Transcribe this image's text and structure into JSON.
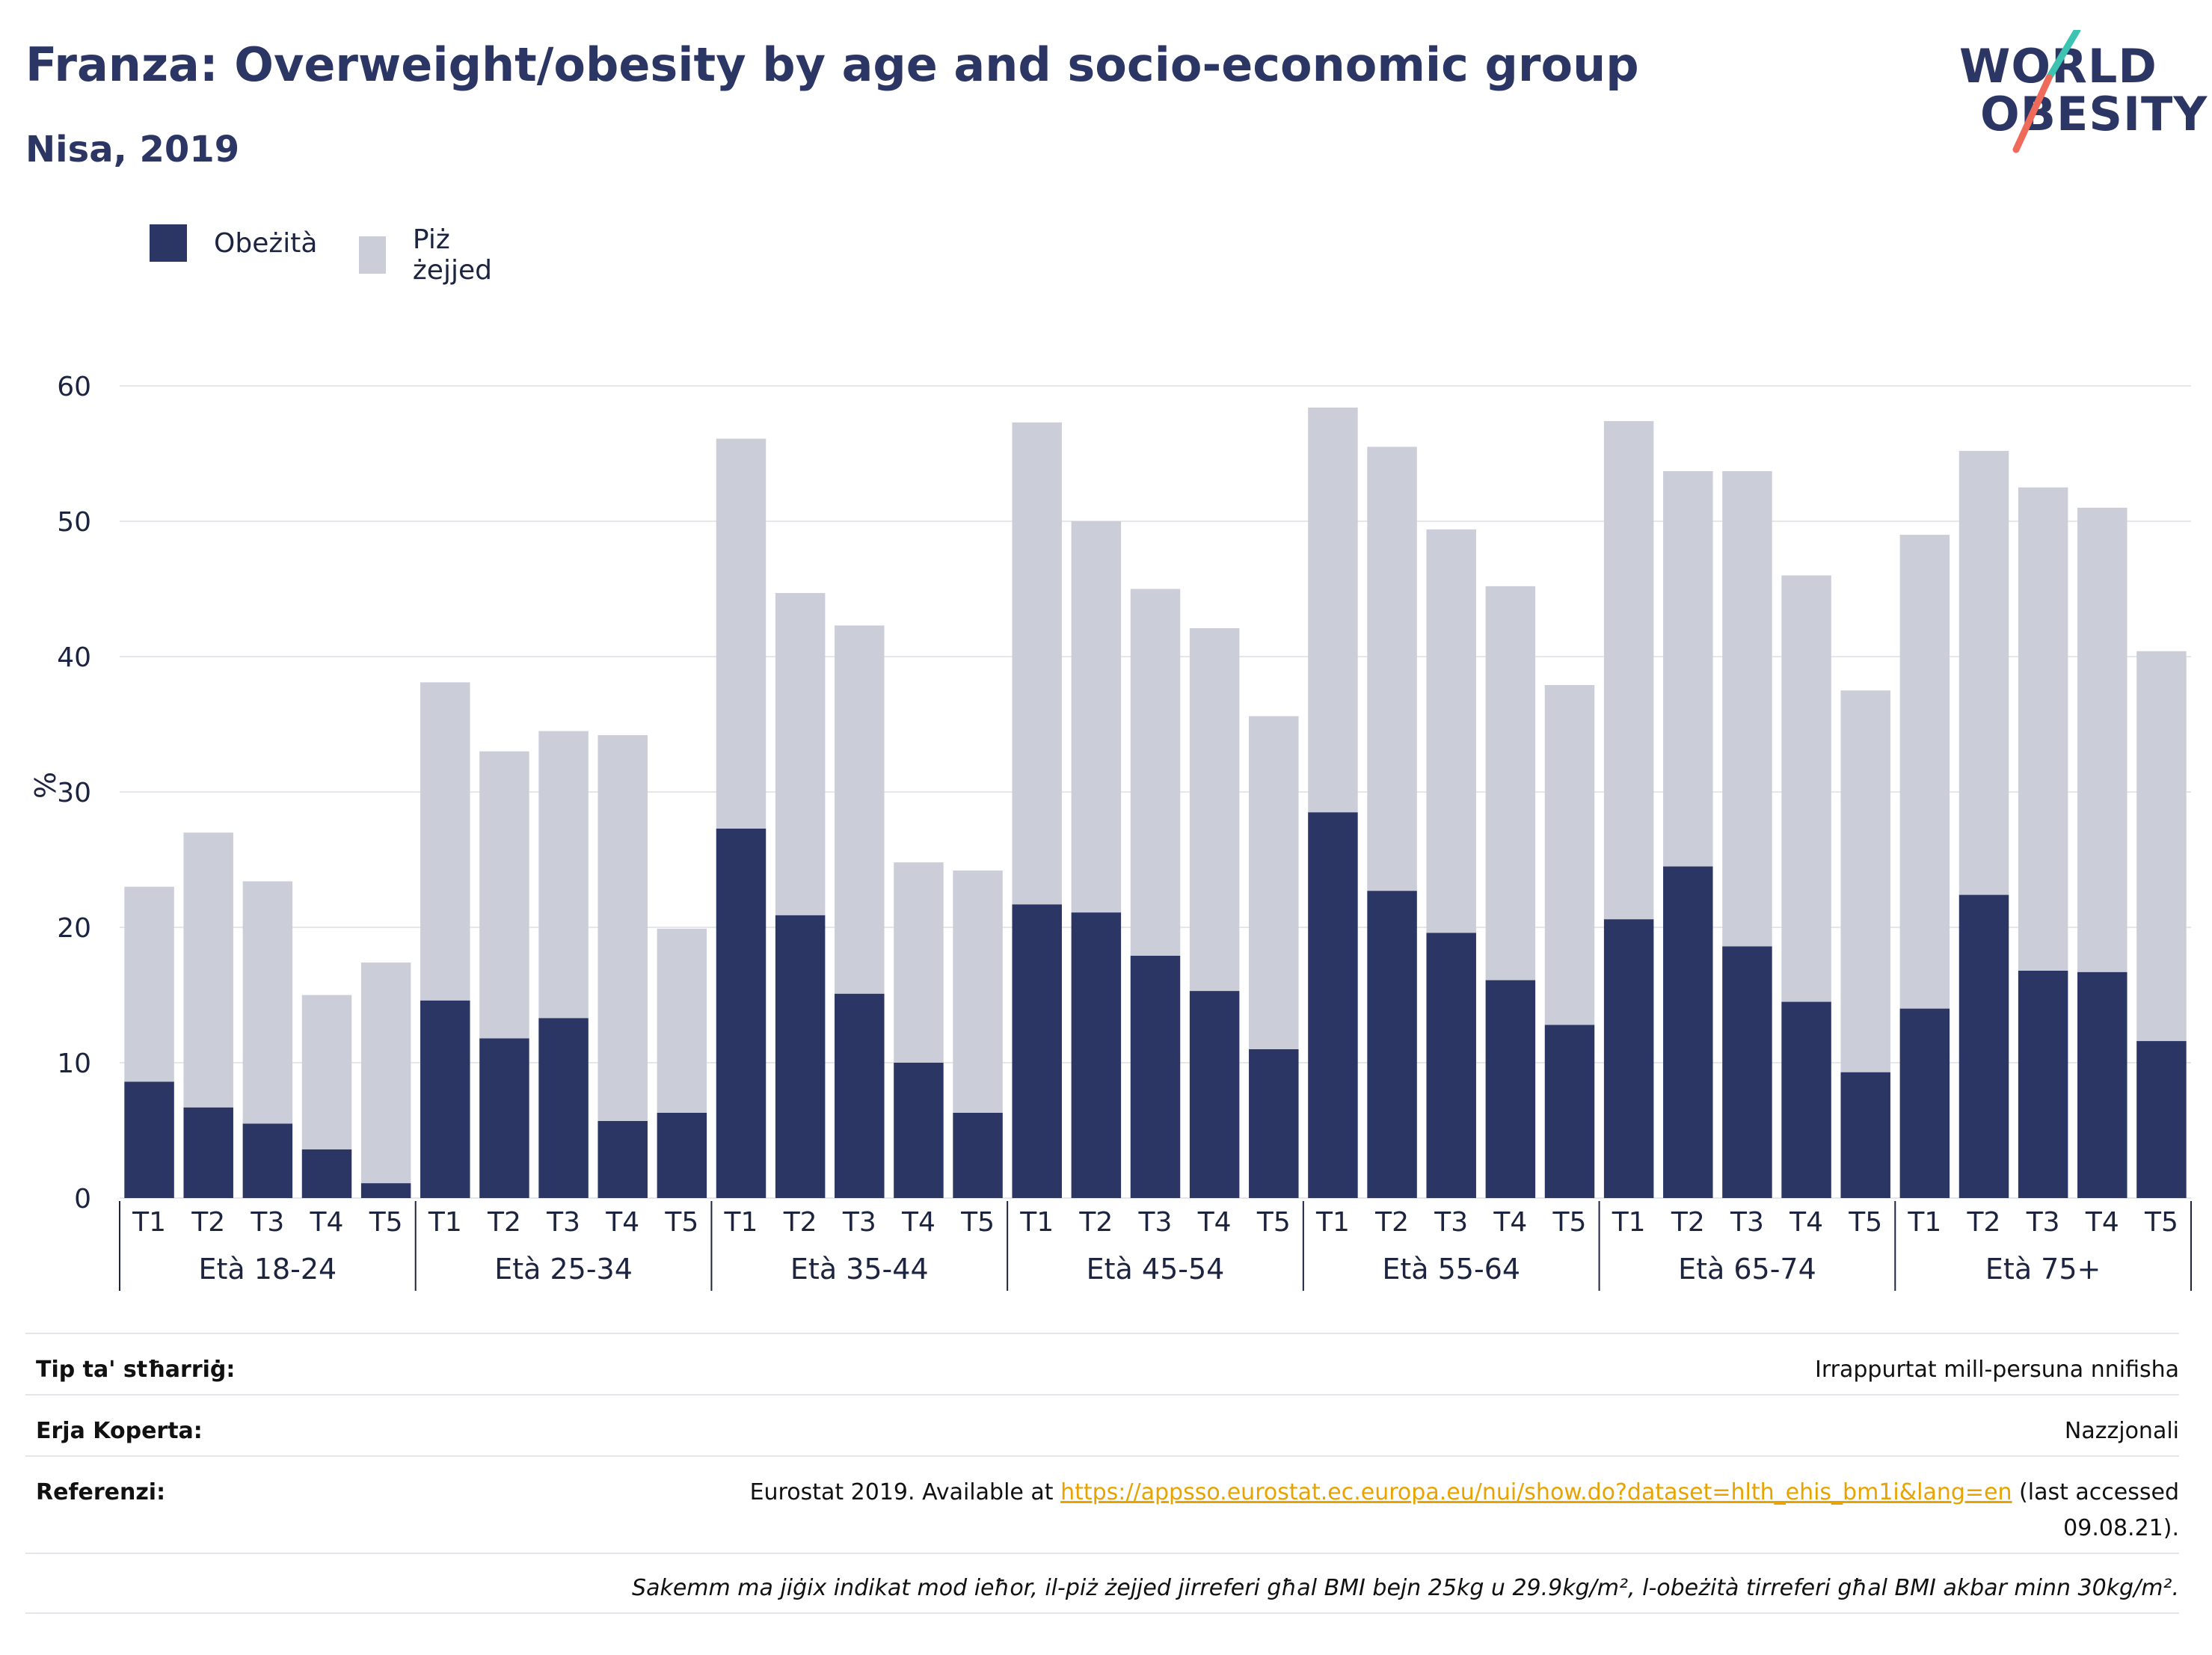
{
  "title": "Franza: Overweight/obesity by age and socio-economic group",
  "subtitle": "Nisa, 2019",
  "logo": {
    "line1": "WORLD",
    "line2": "OBESITY"
  },
  "legend": [
    {
      "label": "Obeżità",
      "color": "#2b3664"
    },
    {
      "label": "Piż żejjed",
      "color": "#cbcdd9"
    }
  ],
  "chart_data": {
    "type": "bar",
    "stacked": true,
    "ylabel": "%",
    "ylim": [
      0,
      60
    ],
    "yticks": [
      0,
      10,
      20,
      30,
      40,
      50,
      60
    ],
    "grid": true,
    "legend_position": "top-left",
    "groups": [
      "Età 18-24",
      "Età 25-34",
      "Età 35-44",
      "Età 45-54",
      "Età 55-64",
      "Età 65-74",
      "Età 75+"
    ],
    "categories": [
      "T1",
      "T2",
      "T3",
      "T4",
      "T5"
    ],
    "series": [
      {
        "name": "Obeżità",
        "color": "#2b3664",
        "values": [
          [
            8.6,
            6.7,
            5.5,
            3.6,
            1.1
          ],
          [
            14.6,
            11.8,
            13.3,
            5.7,
            6.3
          ],
          [
            27.3,
            20.9,
            15.1,
            10.0,
            6.3
          ],
          [
            21.7,
            21.1,
            17.9,
            15.3,
            11.0
          ],
          [
            28.5,
            22.7,
            19.6,
            16.1,
            12.8
          ],
          [
            20.6,
            24.5,
            18.6,
            14.5,
            9.3
          ],
          [
            14.0,
            22.4,
            16.8,
            16.7,
            11.6
          ]
        ]
      },
      {
        "name": "Piż żejjed",
        "color": "#cbcdd9",
        "values": [
          [
            14.4,
            20.3,
            17.9,
            11.4,
            16.3
          ],
          [
            23.5,
            21.2,
            21.2,
            28.5,
            13.6
          ],
          [
            28.8,
            23.8,
            27.2,
            14.8,
            17.9
          ],
          [
            35.6,
            28.9,
            27.1,
            26.8,
            24.6
          ],
          [
            29.9,
            32.8,
            29.8,
            29.1,
            25.1
          ],
          [
            36.8,
            29.2,
            35.1,
            31.5,
            28.2
          ],
          [
            35.0,
            32.8,
            35.7,
            34.3,
            28.8
          ]
        ]
      }
    ]
  },
  "meta": {
    "survey_type_label": "Tip ta' stħarriġ:",
    "survey_type_value": "Irrappurtat mill-persuna nnifisha",
    "area_label": "Erja Koperta:",
    "area_value": "Nazzjonali",
    "ref_label": "Referenzi:",
    "ref_prefix": "Eurostat 2019. Available at ",
    "ref_link": "https://appsso.eurostat.ec.europa.eu/nui/show.do?dataset=hlth_ehis_bm1i&lang=en",
    "ref_suffix": " (last accessed",
    "ref_date": "09.08.21).",
    "note": "Sakemm ma jiġix indikat mod ieħor, il-piż żejjed jirreferi għal BMI bejn 25kg u 29.9kg/m², l-obeżità tirreferi għal BMI akbar minn 30kg/m²."
  }
}
